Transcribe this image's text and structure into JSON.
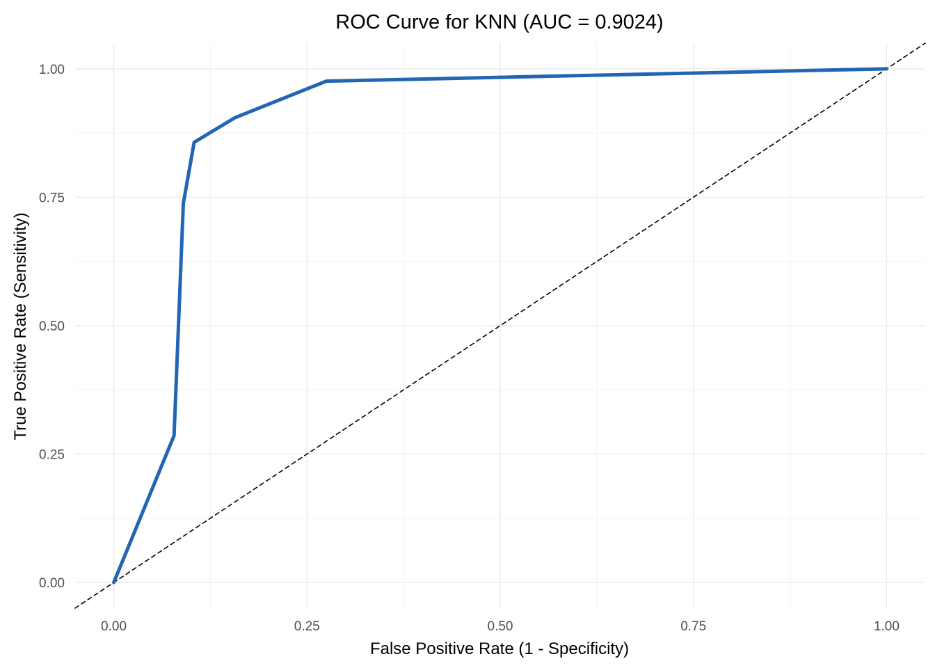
{
  "chart_data": {
    "type": "line",
    "title": "ROC Curve for KNN (AUC = 0.9024)",
    "xlabel": "False Positive Rate (1 - Specificity)",
    "ylabel": "True Positive Rate (Sensitivity)",
    "xlim": [
      -0.05,
      1.05
    ],
    "ylim": [
      -0.05,
      1.05
    ],
    "x_ticks": [
      0,
      0.25,
      0.5,
      0.75,
      1.0
    ],
    "x_tick_labels": [
      "0.00",
      "0.25",
      "0.50",
      "0.75",
      "1.00"
    ],
    "y_ticks": [
      0,
      0.25,
      0.5,
      0.75,
      1.0
    ],
    "y_tick_labels": [
      "0.00",
      "0.25",
      "0.50",
      "0.75",
      "1.00"
    ],
    "grid": true,
    "series": [
      {
        "style": "solid",
        "color": "#2166b4",
        "points": [
          {
            "x": 0.0,
            "y": 0.0
          },
          {
            "x": 0.078,
            "y": 0.286
          },
          {
            "x": 0.09,
            "y": 0.738
          },
          {
            "x": 0.104,
            "y": 0.857
          },
          {
            "x": 0.157,
            "y": 0.905
          },
          {
            "x": 0.275,
            "y": 0.976
          },
          {
            "x": 1.0,
            "y": 1.0
          }
        ]
      },
      {
        "style": "dashed",
        "color": "#000000",
        "points": [
          {
            "x": -0.05,
            "y": -0.05
          },
          {
            "x": 1.05,
            "y": 1.05
          }
        ]
      }
    ]
  }
}
